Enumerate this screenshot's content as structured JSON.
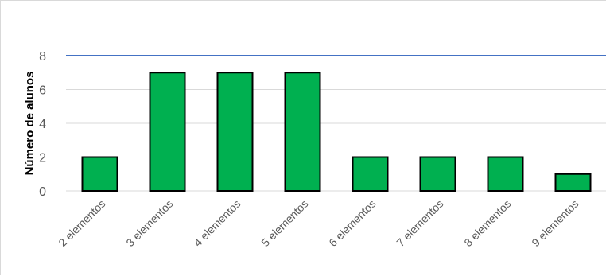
{
  "chart_data": {
    "type": "bar",
    "title": "",
    "xlabel": "",
    "ylabel": "Número de alunos",
    "categories": [
      "2 elementos",
      "3 elementos",
      "4 elementos",
      "5 elementos",
      "6 elementos",
      "7 elementos",
      "8 elementos",
      "9 elementos"
    ],
    "values": [
      2,
      7,
      7,
      7,
      2,
      2,
      2,
      1
    ],
    "ylim": [
      0,
      8
    ],
    "yticks": [
      0,
      2,
      4,
      6,
      8
    ],
    "grid": true,
    "legend": "none",
    "colors": {
      "bar_fill": "#00b050",
      "bar_stroke": "#000000",
      "gridline": "#d9d9d9",
      "top_line": "#4472c4",
      "tick_text": "#595959"
    }
  }
}
